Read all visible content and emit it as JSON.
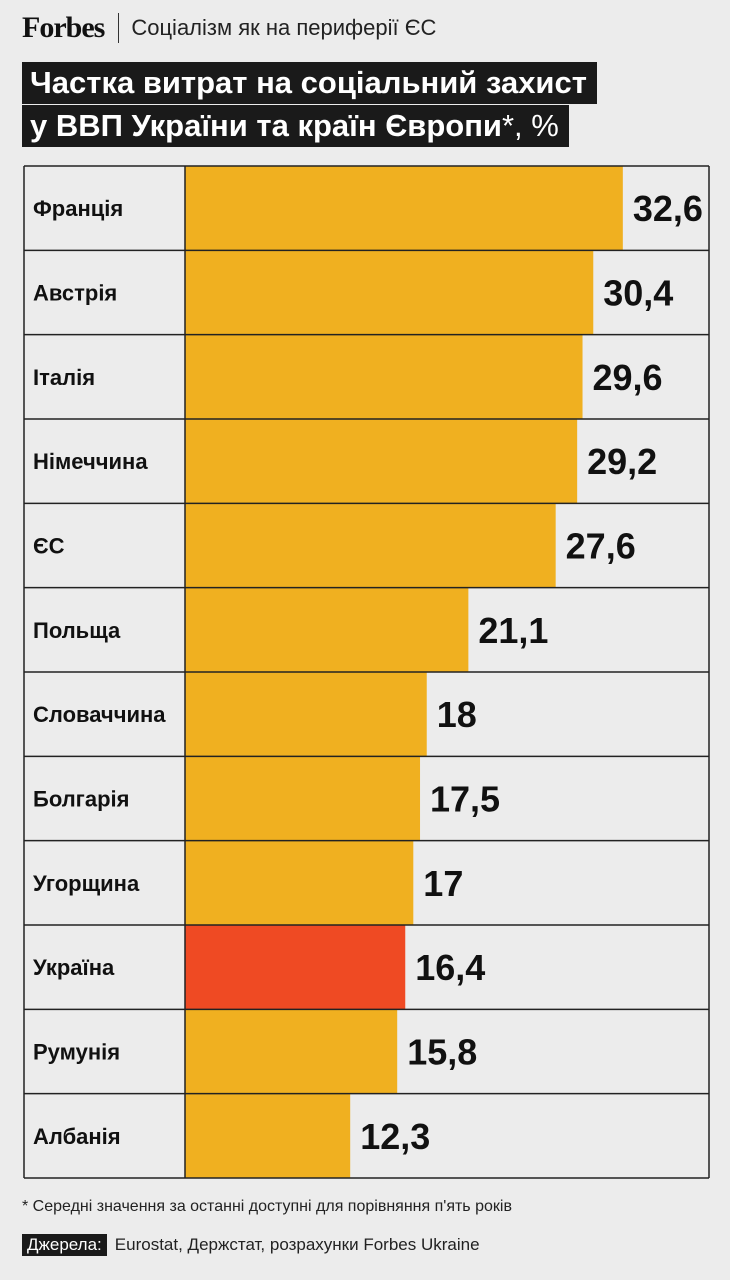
{
  "header": {
    "logo": "Forbes",
    "section": "Соціалізм як на периферії ЄС"
  },
  "title": {
    "line1": "Частка витрат на соціальний захист",
    "line2": "у ВВП України та країн Європи",
    "line2_suffix": "*, %"
  },
  "chart_data": {
    "type": "bar",
    "orientation": "horizontal",
    "categories": [
      "Франція",
      "Австрія",
      "Італія",
      "Німеччина",
      "ЄС",
      "Польща",
      "Словаччина",
      "Болгарія",
      "Угорщина",
      "Україна",
      "Румунія",
      "Албанія"
    ],
    "values": [
      32.6,
      30.4,
      29.6,
      29.2,
      27.6,
      21.1,
      18,
      17.5,
      17,
      16.4,
      15.8,
      12.3
    ],
    "value_labels": [
      "32,6",
      "30,4",
      "29,6",
      "29,2",
      "27,6",
      "21,1",
      "18",
      "17,5",
      "17",
      "16,4",
      "15,8",
      "12,3"
    ],
    "highlight_category": "Україна",
    "colors": {
      "bar": "#f0b020",
      "highlight": "#ef4a23",
      "grid": "#222222",
      "text": "#111111"
    },
    "grid": true,
    "legend": "none"
  },
  "footnote": "* Середні значення за останні доступні для порівняння п'ять років",
  "sources": {
    "label": "Джерела:",
    "text": "Eurostat, Держстат, розрахунки Forbes Ukraine"
  }
}
